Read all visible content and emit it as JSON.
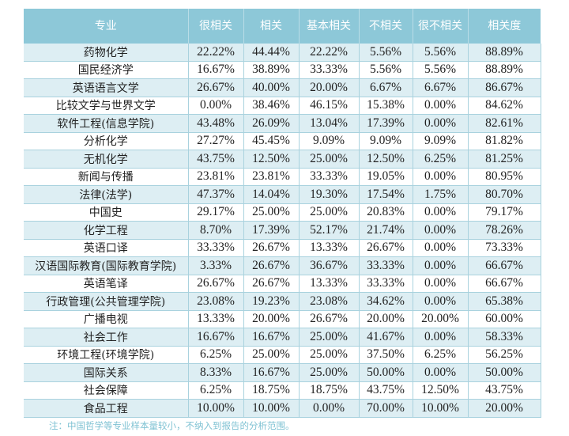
{
  "table": {
    "headers": [
      "专业",
      "很相关",
      "相关",
      "基本相关",
      "不相关",
      "很不相关",
      "相关度"
    ],
    "rows": [
      [
        "药物化学",
        "22.22%",
        "44.44%",
        "22.22%",
        "5.56%",
        "5.56%",
        "88.89%"
      ],
      [
        "国民经济学",
        "16.67%",
        "38.89%",
        "33.33%",
        "5.56%",
        "5.56%",
        "88.89%"
      ],
      [
        "英语语言文学",
        "26.67%",
        "40.00%",
        "20.00%",
        "6.67%",
        "6.67%",
        "86.67%"
      ],
      [
        "比较文学与世界文学",
        "0.00%",
        "38.46%",
        "46.15%",
        "15.38%",
        "0.00%",
        "84.62%"
      ],
      [
        "软件工程(信息学院)",
        "43.48%",
        "26.09%",
        "13.04%",
        "17.39%",
        "0.00%",
        "82.61%"
      ],
      [
        "分析化学",
        "27.27%",
        "45.45%",
        "9.09%",
        "9.09%",
        "9.09%",
        "81.82%"
      ],
      [
        "无机化学",
        "43.75%",
        "12.50%",
        "25.00%",
        "12.50%",
        "6.25%",
        "81.25%"
      ],
      [
        "新闻与传播",
        "23.81%",
        "23.81%",
        "33.33%",
        "19.05%",
        "0.00%",
        "80.95%"
      ],
      [
        "法律(法学)",
        "47.37%",
        "14.04%",
        "19.30%",
        "17.54%",
        "1.75%",
        "80.70%"
      ],
      [
        "中国史",
        "29.17%",
        "25.00%",
        "25.00%",
        "20.83%",
        "0.00%",
        "79.17%"
      ],
      [
        "化学工程",
        "8.70%",
        "17.39%",
        "52.17%",
        "21.74%",
        "0.00%",
        "78.26%"
      ],
      [
        "英语口译",
        "33.33%",
        "26.67%",
        "13.33%",
        "26.67%",
        "0.00%",
        "73.33%"
      ],
      [
        "汉语国际教育(国际教育学院)",
        "3.33%",
        "26.67%",
        "36.67%",
        "33.33%",
        "0.00%",
        "66.67%"
      ],
      [
        "英语笔译",
        "26.67%",
        "26.67%",
        "13.33%",
        "33.33%",
        "0.00%",
        "66.67%"
      ],
      [
        "行政管理(公共管理学院)",
        "23.08%",
        "19.23%",
        "23.08%",
        "34.62%",
        "0.00%",
        "65.38%"
      ],
      [
        "广播电视",
        "13.33%",
        "20.00%",
        "26.67%",
        "20.00%",
        "20.00%",
        "60.00%"
      ],
      [
        "社会工作",
        "16.67%",
        "16.67%",
        "25.00%",
        "41.67%",
        "0.00%",
        "58.33%"
      ],
      [
        "环境工程(环境学院)",
        "6.25%",
        "25.00%",
        "25.00%",
        "37.50%",
        "6.25%",
        "56.25%"
      ],
      [
        "国际关系",
        "8.33%",
        "16.67%",
        "25.00%",
        "50.00%",
        "0.00%",
        "50.00%"
      ],
      [
        "社会保障",
        "6.25%",
        "18.75%",
        "18.75%",
        "43.75%",
        "12.50%",
        "43.75%"
      ],
      [
        "食品工程",
        "10.00%",
        "10.00%",
        "0.00%",
        "70.00%",
        "10.00%",
        "20.00%"
      ]
    ]
  },
  "note": "注：中国哲学等专业样本量较小，不纳入到报告的分析范围。",
  "colors": {
    "header_bg": "#8dc8d8",
    "stripe_bg": "#ddeef3",
    "note_text": "#7fc2d3"
  }
}
